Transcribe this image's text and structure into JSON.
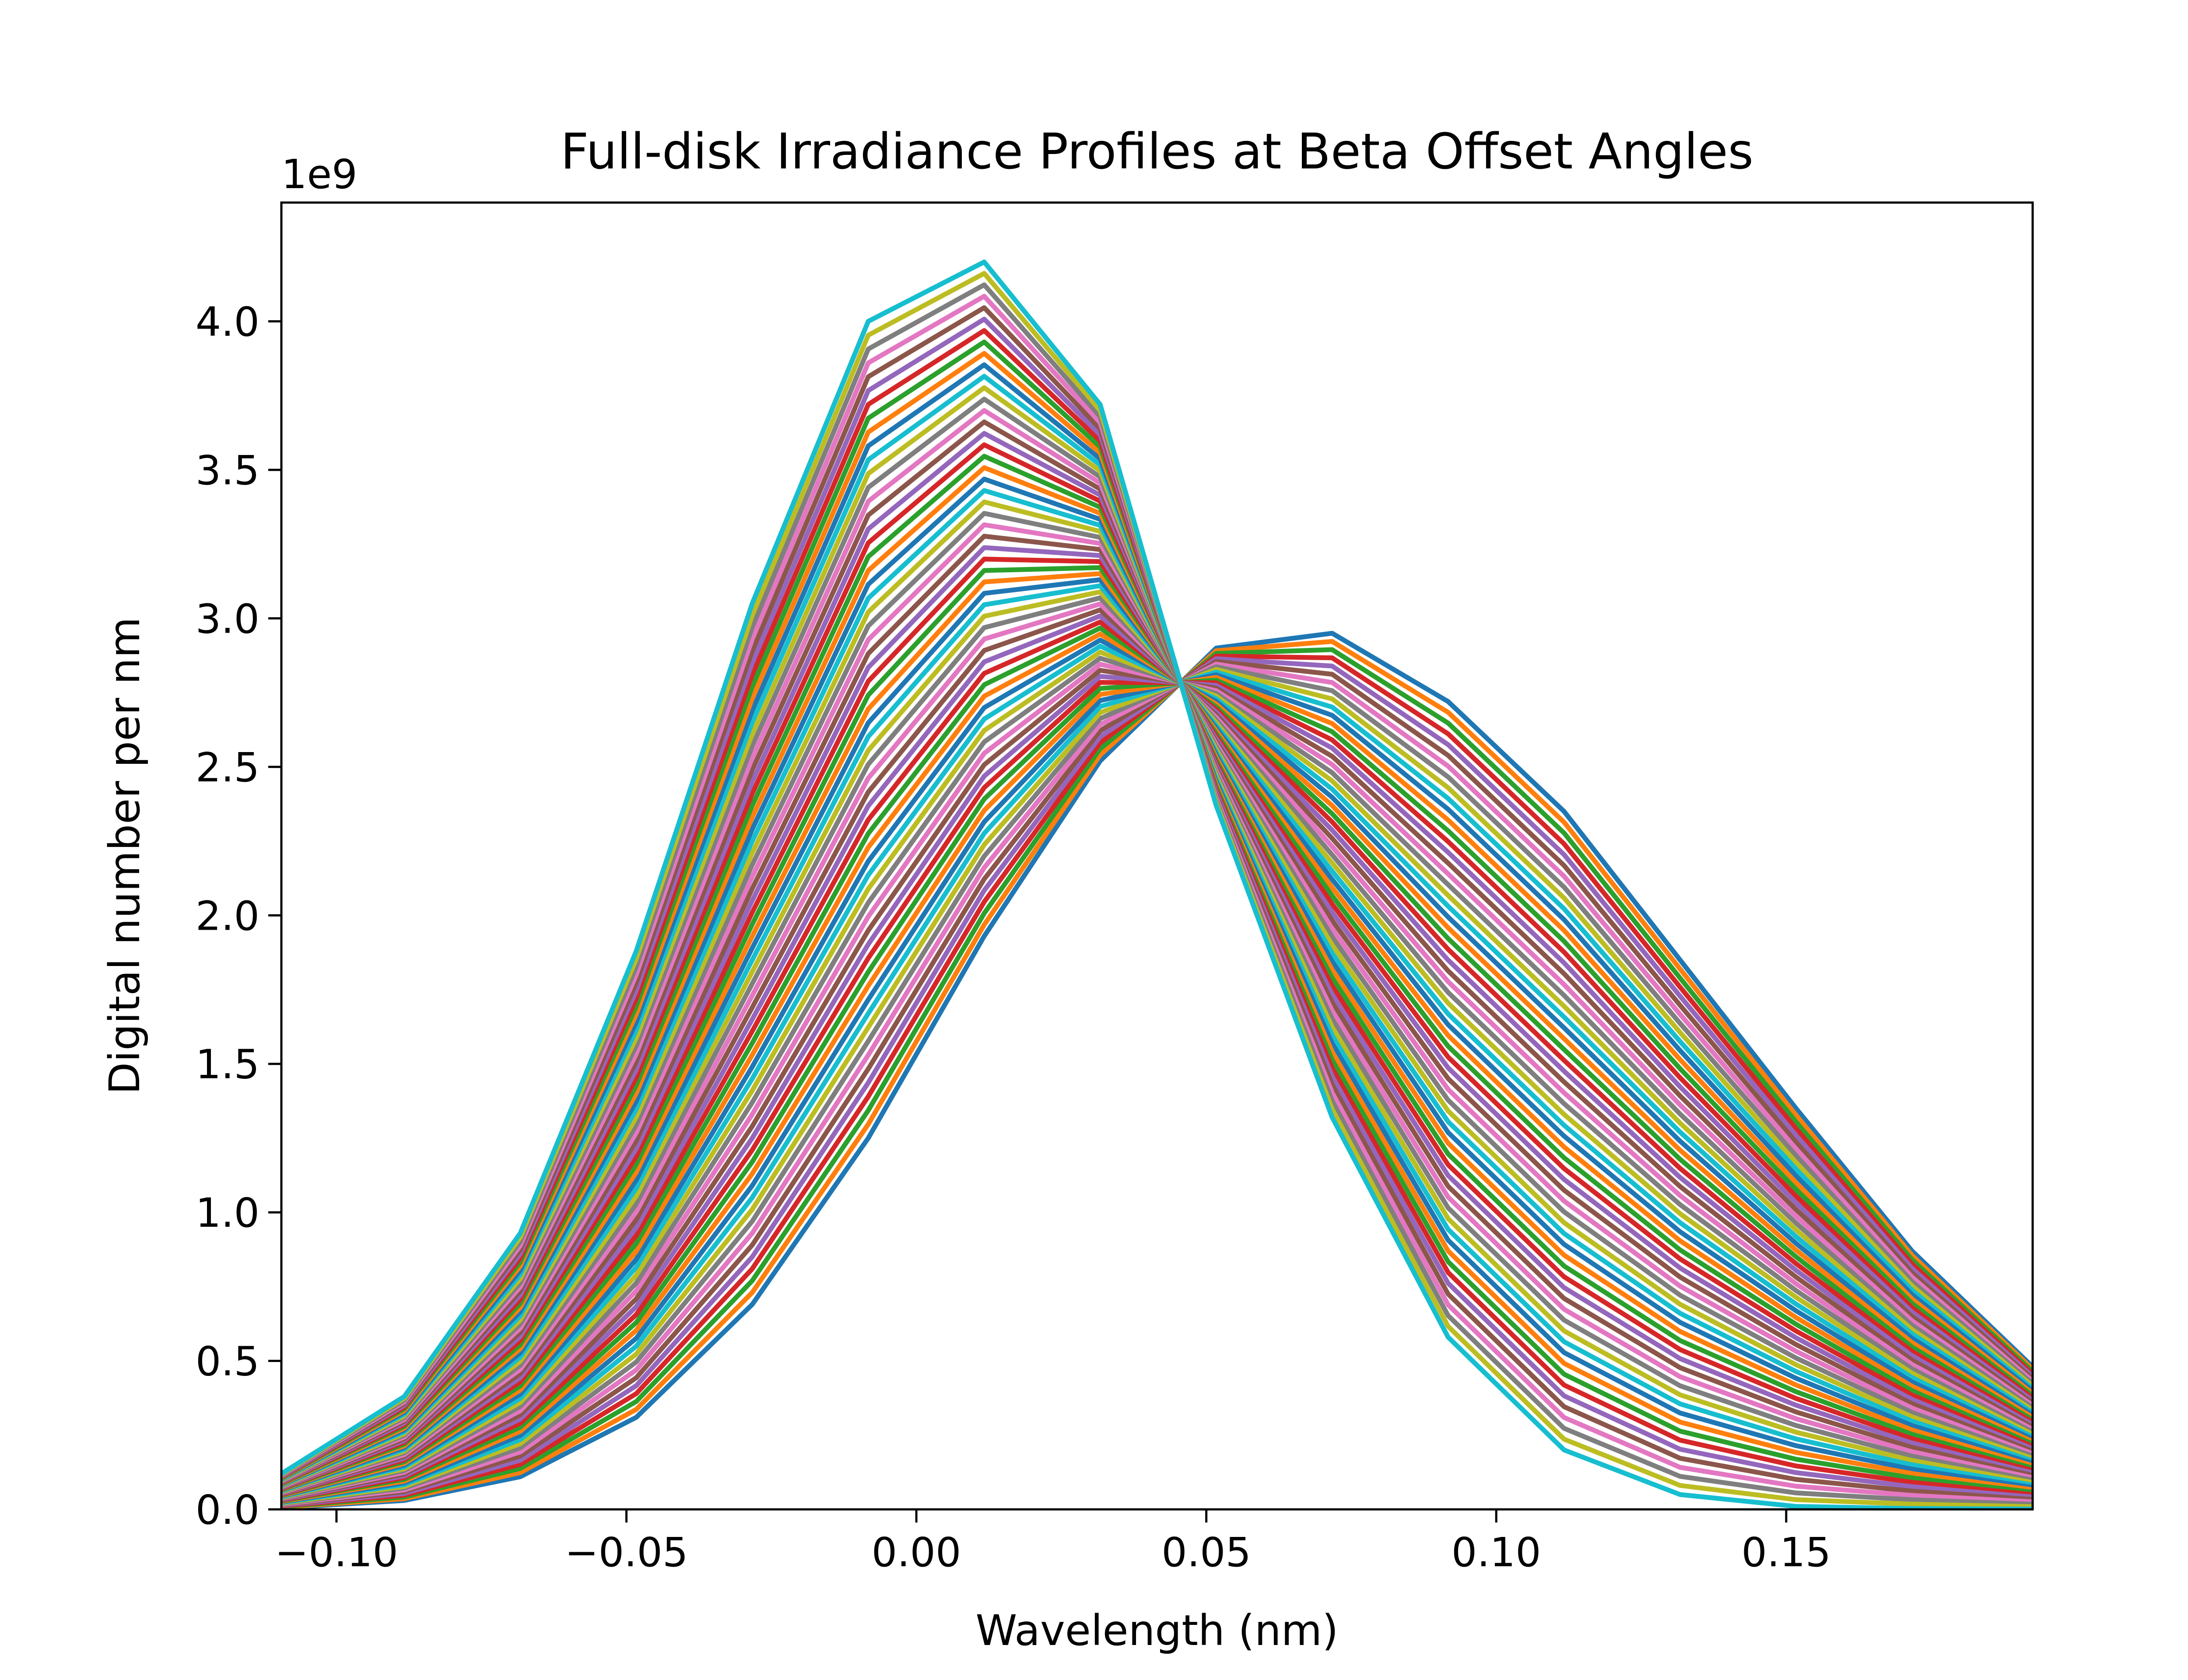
{
  "chart_data": {
    "type": "line",
    "title": "Full-disk Irradiance Profiles at Beta Offset Angles",
    "xlabel": "Wavelength (nm)",
    "ylabel": "Digital number per nm",
    "y_offset_label": "1e9",
    "y_scale": 1000000000,
    "xlim": [
      -0.1095,
      0.1925
    ],
    "ylim": [
      0,
      4.4
    ],
    "grid": false,
    "legend": "none",
    "x_ticks": [
      -0.1,
      -0.05,
      0.0,
      0.05,
      0.1,
      0.15
    ],
    "x_tick_labels": [
      "−0.10",
      "−0.05",
      "0.00",
      "0.05",
      "0.10",
      "0.15"
    ],
    "y_ticks": [
      0.0,
      0.5,
      1.0,
      1.5,
      2.0,
      2.5,
      3.0,
      3.5,
      4.0
    ],
    "y_tick_labels": [
      "0.0",
      "0.5",
      "1.0",
      "1.5",
      "2.0",
      "2.5",
      "3.0",
      "3.5",
      "4.0"
    ],
    "x": [
      -0.1095,
      -0.0883,
      -0.0683,
      -0.0483,
      -0.0283,
      -0.0083,
      0.0117,
      0.0317,
      0.0517,
      0.0717,
      0.0917,
      0.1117,
      0.1317,
      0.1517,
      0.1717,
      0.1925
    ],
    "series_count": 60,
    "palette": [
      "#1f77b4",
      "#ff7f0e",
      "#2ca02c",
      "#d62728",
      "#9467bd",
      "#8c564b",
      "#e377c2",
      "#7f7f7f",
      "#bcbd22",
      "#17becf"
    ],
    "profile_first": [
      0.005,
      0.03,
      0.11,
      0.31,
      0.69,
      1.25,
      1.93,
      2.52,
      2.9,
      2.95,
      2.72,
      2.35,
      1.85,
      1.35,
      0.87,
      0.48
    ],
    "profile_last": [
      0.12,
      0.38,
      0.93,
      1.88,
      3.05,
      4.0,
      4.2,
      3.72,
      2.37,
      1.32,
      0.58,
      0.2,
      0.05,
      0.01,
      0.003,
      0.001
    ]
  }
}
